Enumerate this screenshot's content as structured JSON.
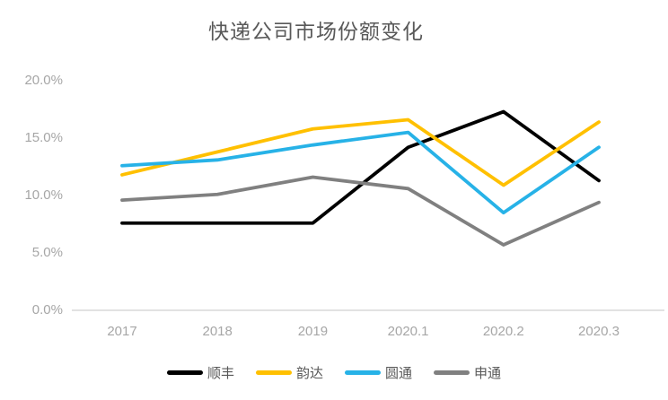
{
  "title": "快递公司市场份额变化",
  "chart_data": {
    "type": "line",
    "title": "快递公司市场份额变化",
    "categories": [
      "2017",
      "2018",
      "2019",
      "2020.1",
      "2020.2",
      "2020.3"
    ],
    "series": [
      {
        "name": "顺丰",
        "color": "#000000",
        "values": [
          7.6,
          7.6,
          7.6,
          14.2,
          17.3,
          11.3
        ]
      },
      {
        "name": "韵达",
        "color": "#FFC000",
        "values": [
          11.8,
          13.8,
          15.8,
          16.6,
          10.9,
          16.4
        ]
      },
      {
        "name": "圆通",
        "color": "#27B2E7",
        "values": [
          12.6,
          13.1,
          14.4,
          15.5,
          8.5,
          14.2
        ]
      },
      {
        "name": "申通",
        "color": "#808080",
        "values": [
          9.6,
          10.1,
          11.6,
          10.6,
          5.7,
          9.4
        ]
      }
    ],
    "xlabel": "",
    "ylabel": "",
    "ylim": [
      0,
      20
    ],
    "yticks": {
      "values": [
        0,
        5,
        10,
        15,
        20
      ],
      "labels": [
        "0.0%",
        "5.0%",
        "10.0%",
        "15.0%",
        "20.0%"
      ]
    },
    "grid": false,
    "legend_position": "bottom"
  },
  "colors": {
    "background": "#FFFFFF",
    "axis_line": "#D9D9D9",
    "tick_label": "#A6A6A6",
    "title_text": "#595959",
    "legend_text": "#595959"
  }
}
